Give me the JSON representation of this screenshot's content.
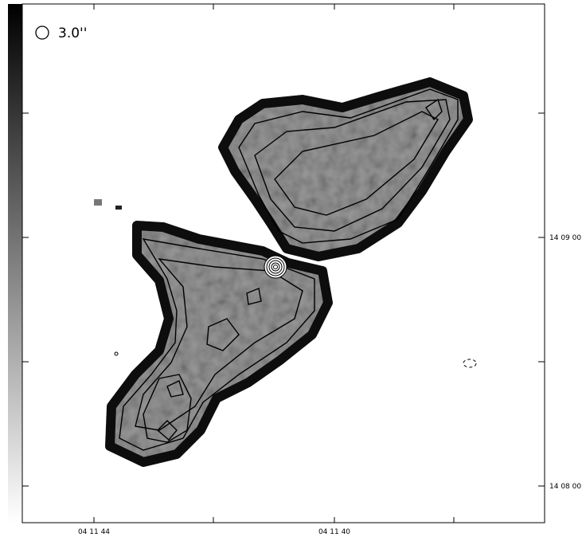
{
  "beam_label": "3.0''",
  "x_axis": {
    "tick_labels": [
      "04 11 44",
      "04 11 40"
    ]
  },
  "y_axis": {
    "tick_labels": [
      "14 09 00",
      "14 08 00"
    ]
  }
}
